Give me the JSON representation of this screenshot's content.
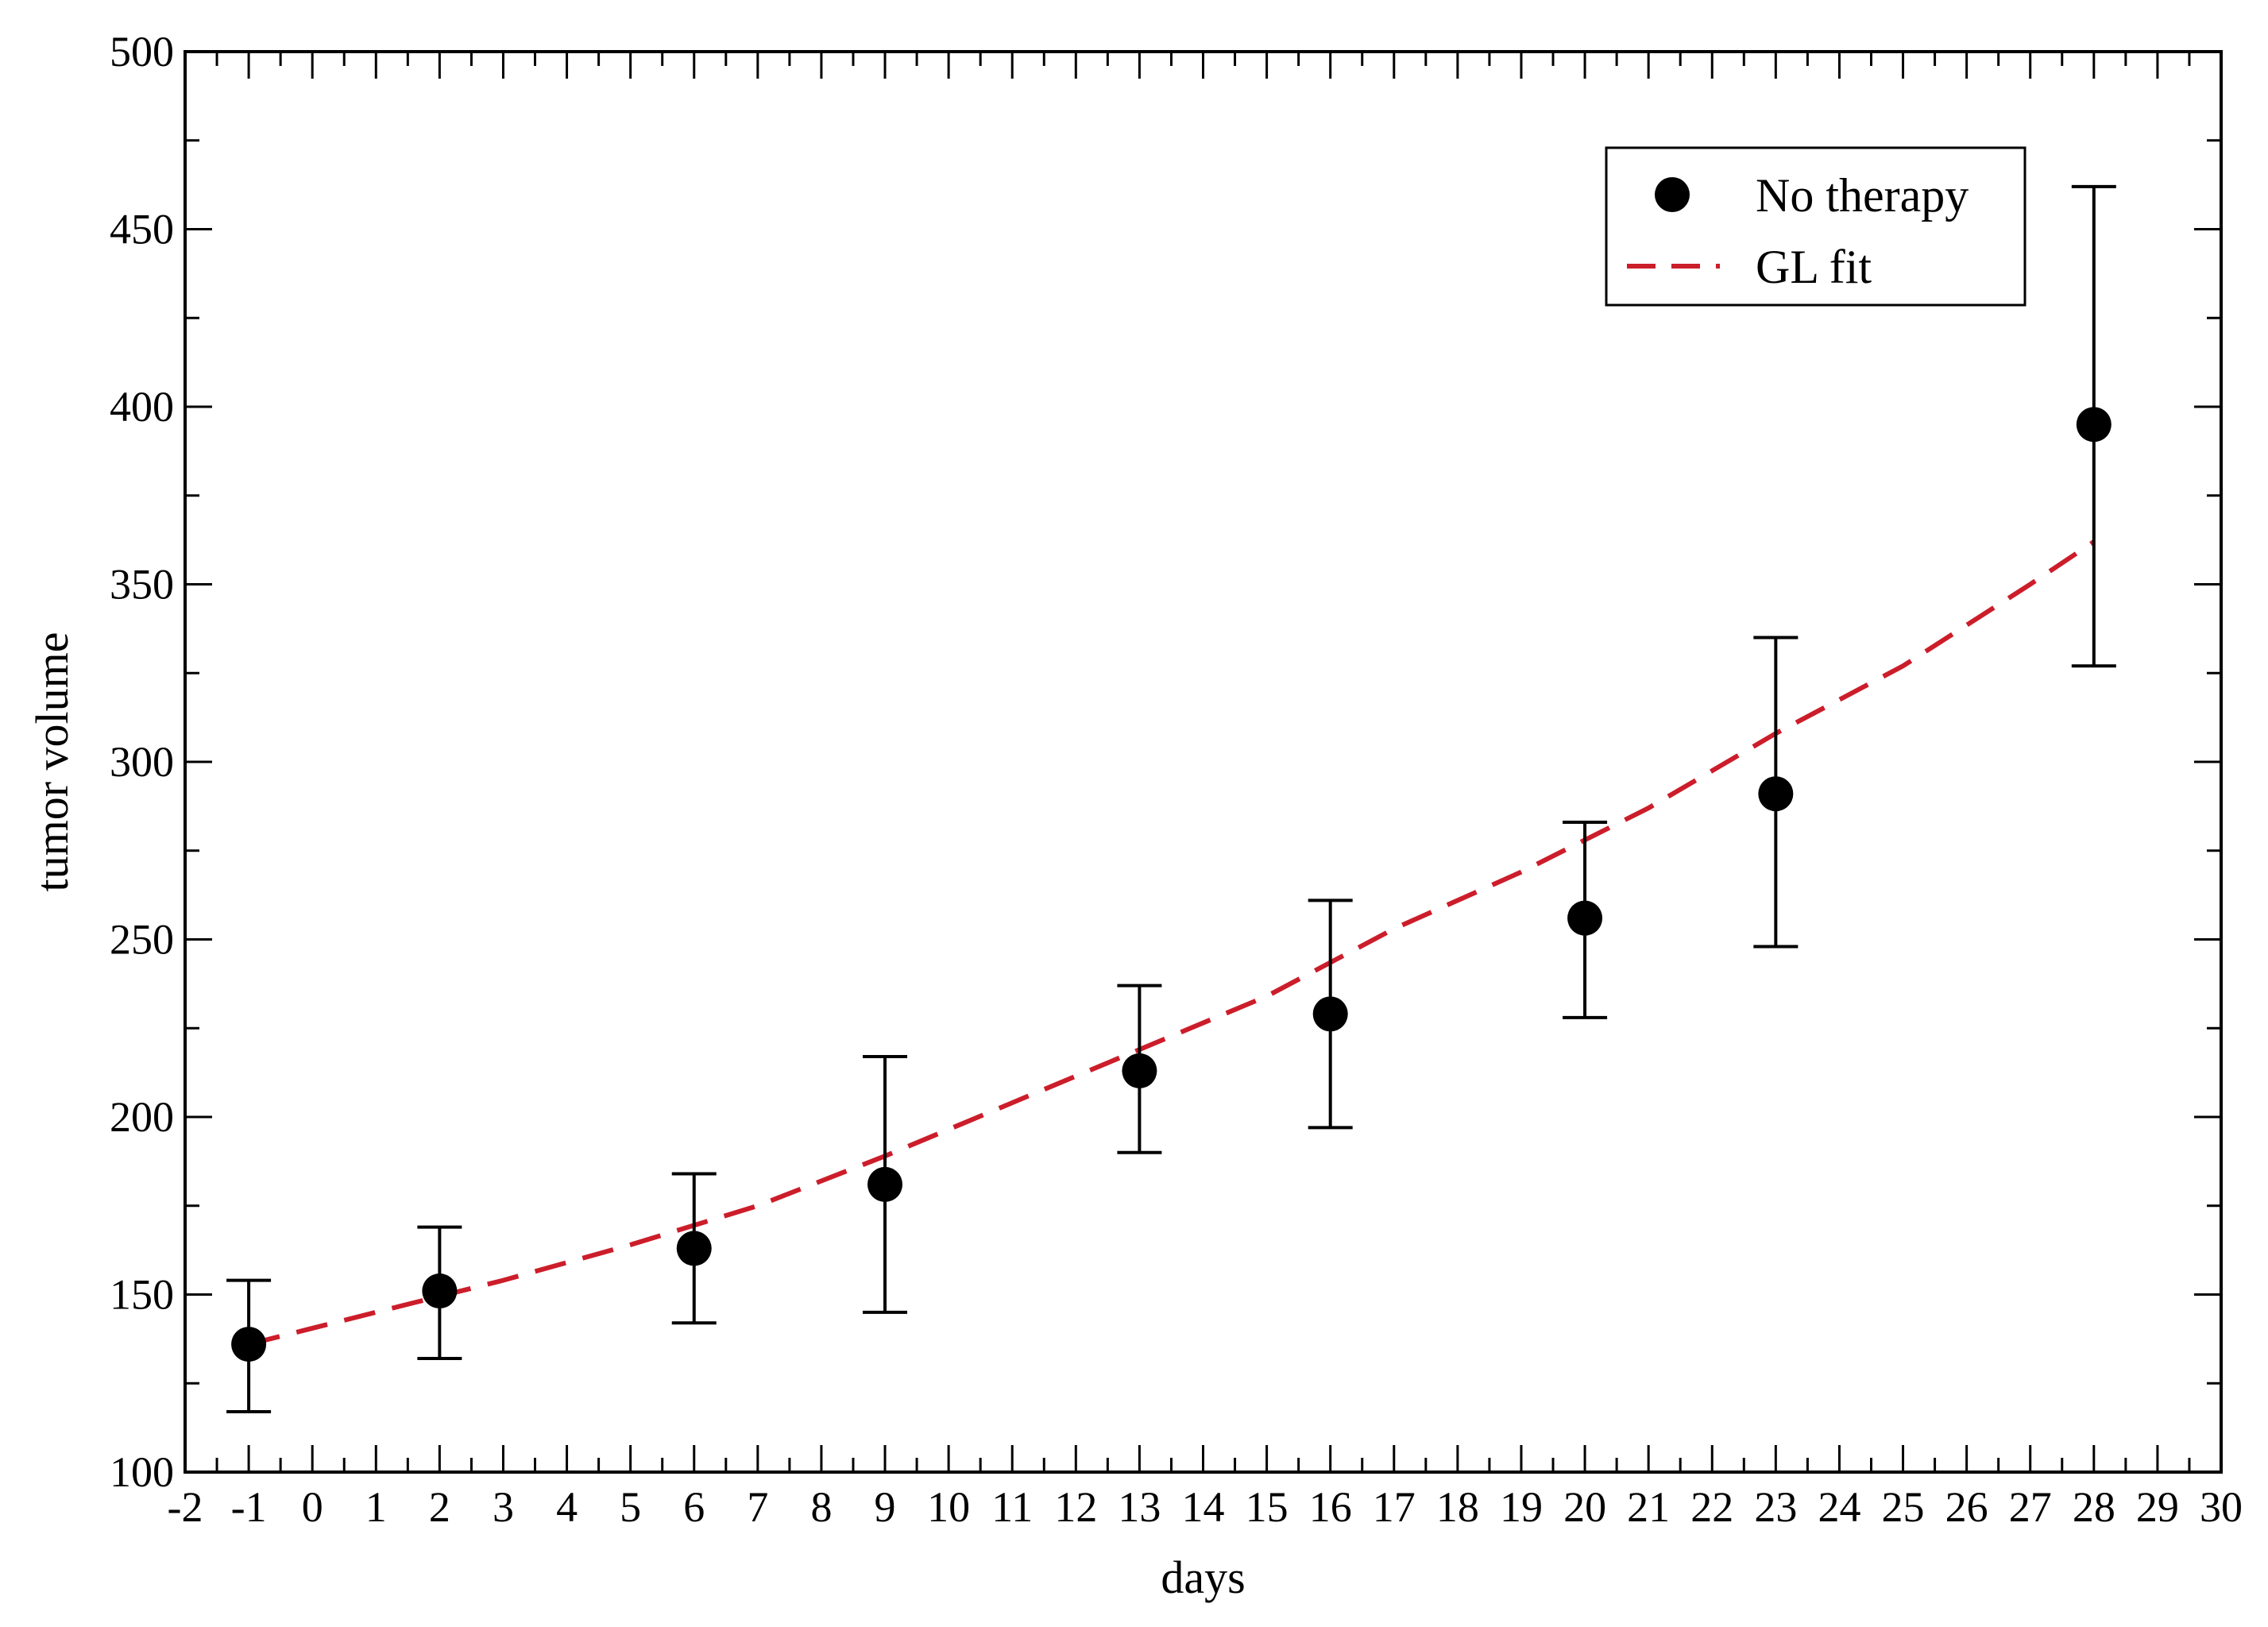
{
  "chart_data": {
    "type": "scatter",
    "title": "",
    "xlabel": "days",
    "ylabel": "tumor volume",
    "xlim": [
      -2,
      30
    ],
    "ylim": [
      100,
      500
    ],
    "x_ticks": [
      "-2",
      "-1",
      "0",
      "1",
      "2",
      "3",
      "4",
      "5",
      "6",
      "7",
      "8",
      "9",
      "10",
      "11",
      "12",
      "13",
      "14",
      "15",
      "16",
      "17",
      "18",
      "19",
      "20",
      "21",
      "22",
      "23",
      "24",
      "25",
      "26",
      "27",
      "28",
      "29",
      "30"
    ],
    "y_ticks": [
      "100",
      "150",
      "200",
      "250",
      "300",
      "350",
      "400",
      "450",
      "500"
    ],
    "grid": false,
    "legend_position": "top-right",
    "series": [
      {
        "name": "No therapy",
        "type": "scatter",
        "color": "#000000",
        "marker": "circle",
        "x": [
          -1,
          2,
          6,
          9,
          13,
          16,
          20,
          23,
          28
        ],
        "y": [
          136,
          151,
          163,
          181,
          213,
          229,
          256,
          291,
          395
        ],
        "error_low": [
          117,
          132,
          142,
          145,
          190,
          197,
          228,
          248,
          327
        ],
        "error_high": [
          154,
          169,
          184,
          217,
          237,
          261,
          283,
          335,
          462
        ]
      },
      {
        "name": "GL fit",
        "type": "line",
        "style": "dashed",
        "color": "#cc1d2a",
        "x": [
          -1,
          1,
          3,
          5,
          7,
          9,
          11,
          13,
          15,
          17,
          19,
          21,
          23,
          25,
          27,
          28
        ],
        "y": [
          136,
          145,
          154,
          164,
          175,
          189,
          204,
          219,
          234,
          253,
          269,
          287,
          308,
          327,
          350,
          362
        ]
      }
    ]
  }
}
